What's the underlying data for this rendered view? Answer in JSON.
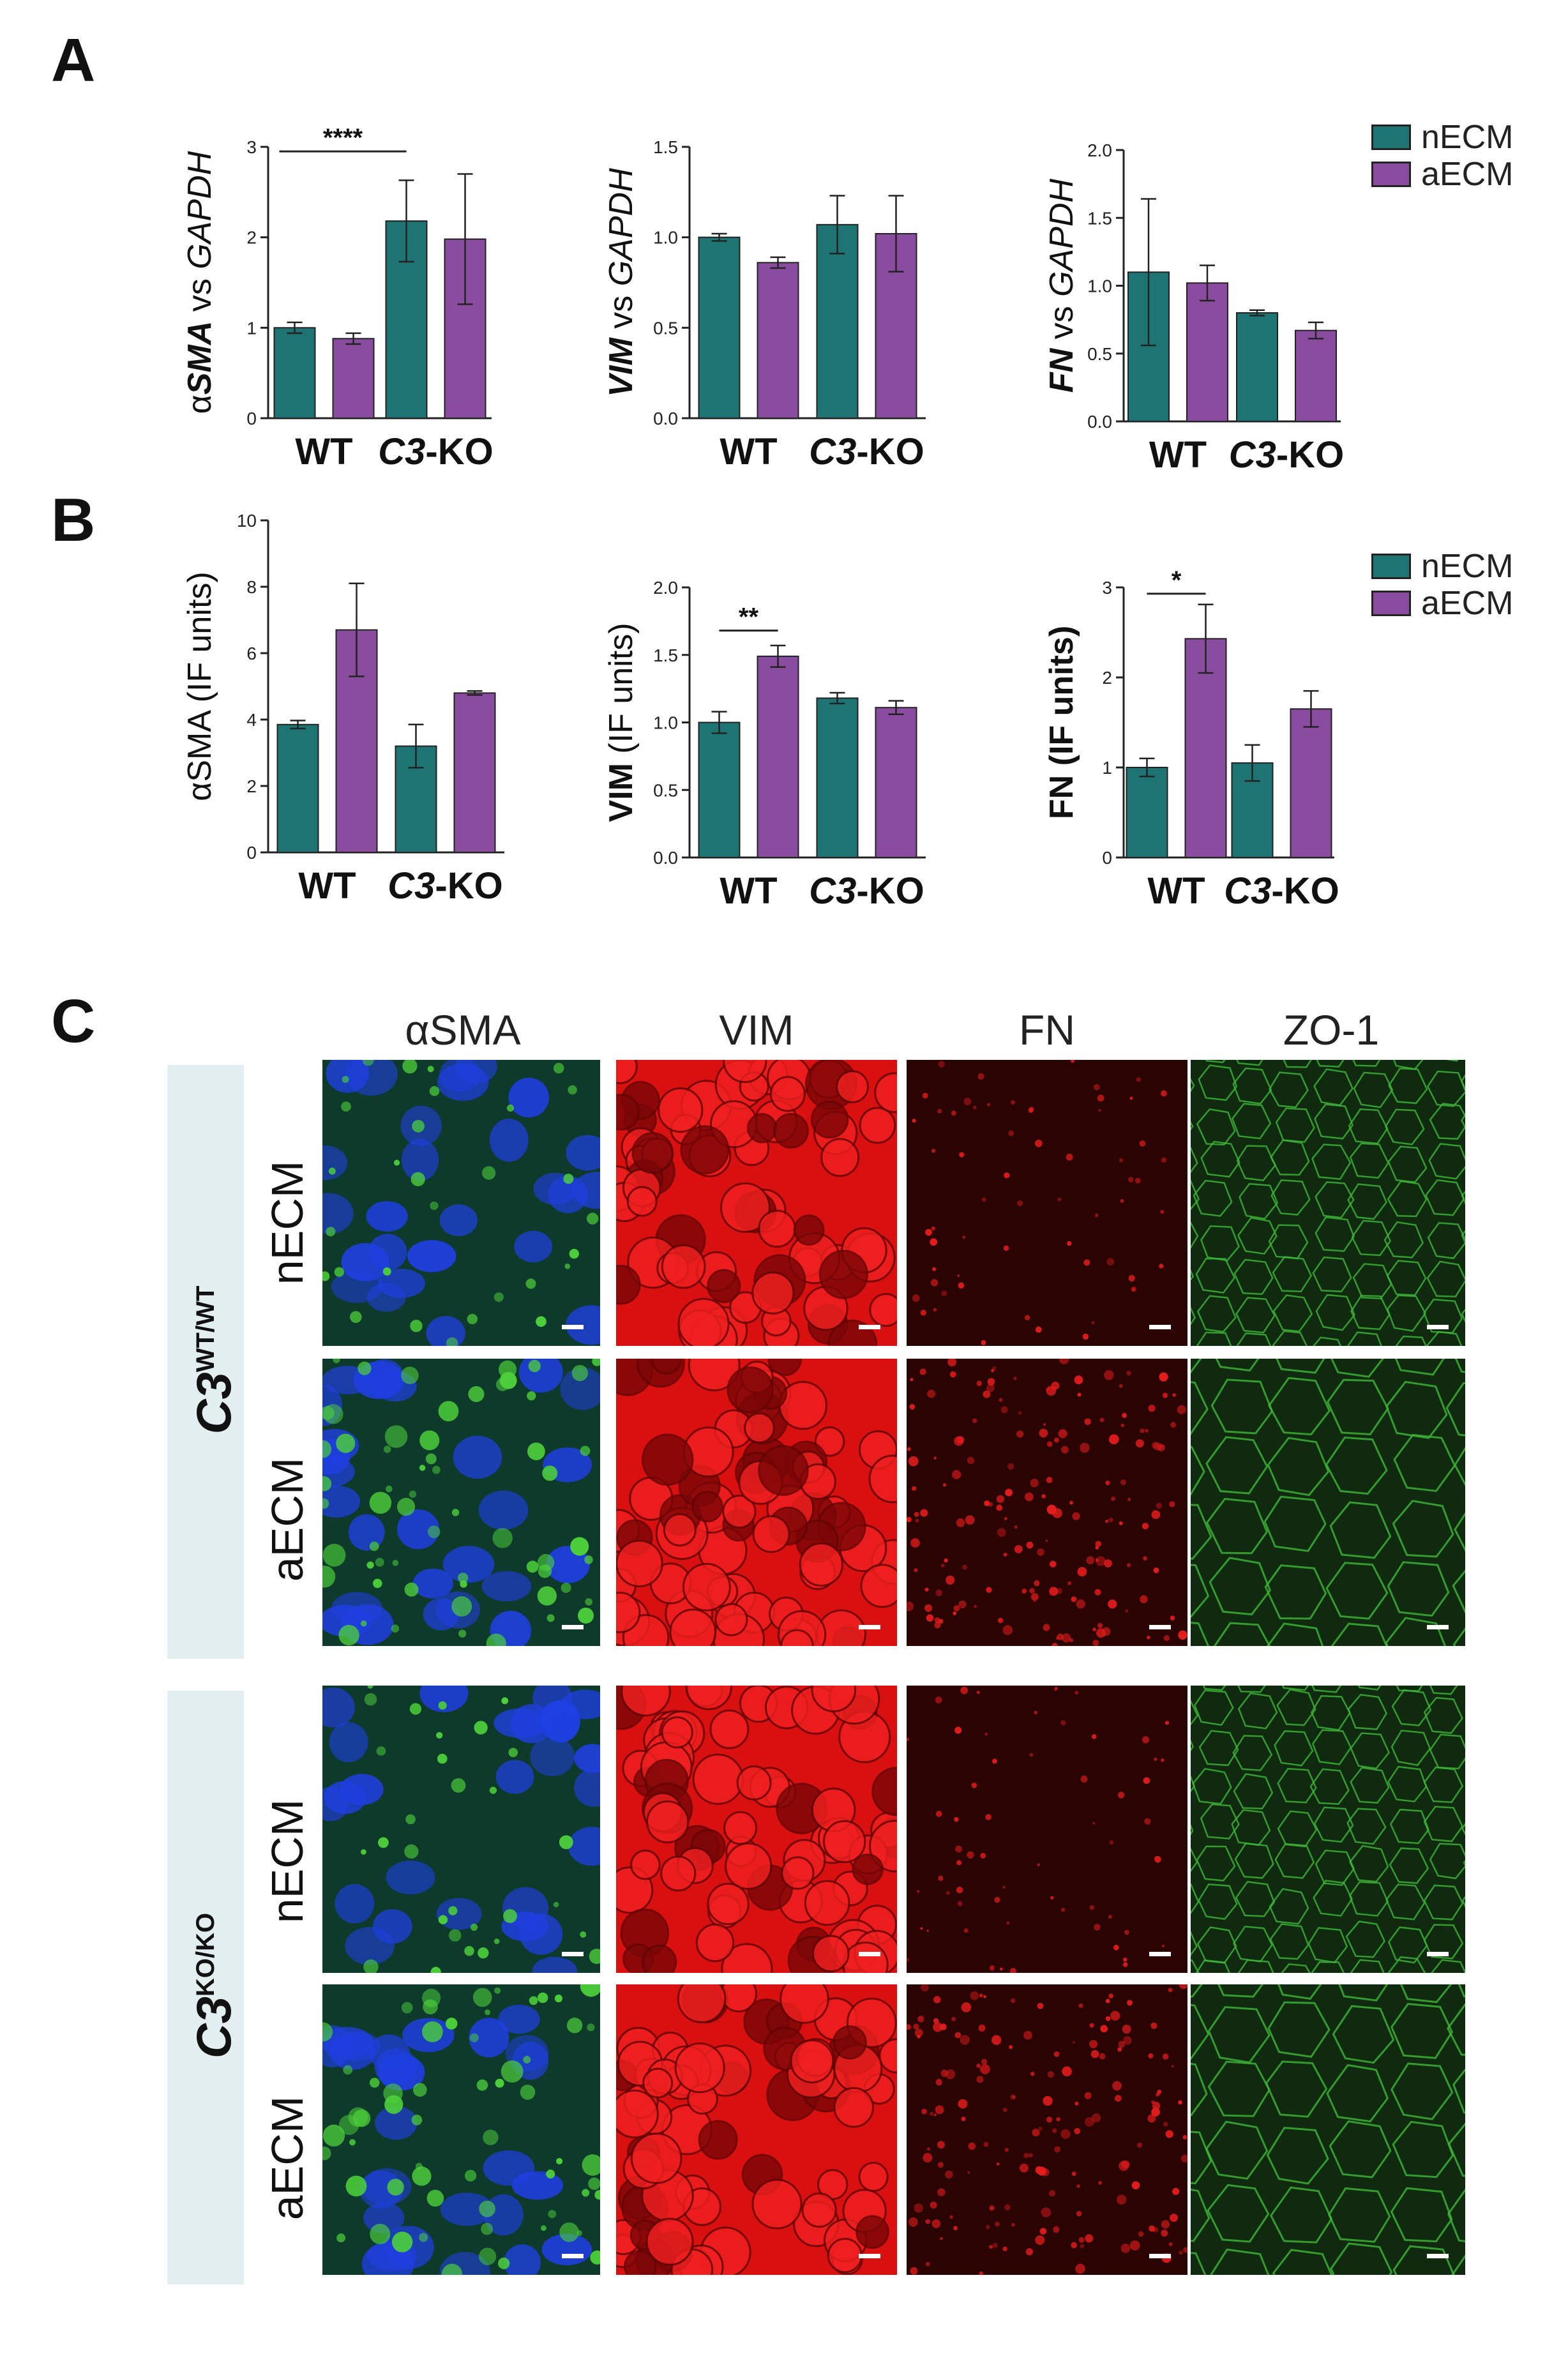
{
  "panels": {
    "a": "A",
    "b": "B",
    "c": "C"
  },
  "colors": {
    "nECM": "#1e7473",
    "aECM": "#8a4c9e",
    "blue": "#1b2fd6",
    "green": "#2fa02a",
    "red": "#e01212"
  },
  "legend_a": [
    {
      "label": "nECM",
      "color": "#1e7473"
    },
    {
      "label": "aECM",
      "color": "#8a4c9e"
    }
  ],
  "legend_b": [
    {
      "label": "nECM",
      "color": "#1e7473"
    },
    {
      "label": "aECM",
      "color": "#8a4c9e"
    }
  ],
  "chart_data": [
    {
      "id": "a1",
      "type": "bar",
      "panel": "A",
      "ylabel_parts": [
        {
          "t": "α",
          "b": false,
          "i": false
        },
        {
          "t": "SMA",
          "b": true,
          "i": true
        },
        {
          "t": " vs ",
          "b": false,
          "i": false
        },
        {
          "t": "GAPDH",
          "b": false,
          "i": true
        }
      ],
      "categories": [
        [
          {
            "t": "WT",
            "i": false
          }
        ],
        [
          {
            "t": "C3",
            "i": true
          },
          {
            "t": "-KO",
            "i": false
          }
        ]
      ],
      "ylim": [
        0,
        3
      ],
      "ticks": [
        "0",
        "1",
        "2",
        "3"
      ],
      "tick_values": [
        0,
        1,
        2,
        3
      ],
      "series": [
        {
          "name": "nECM",
          "values": [
            1.0,
            2.18
          ],
          "errors": [
            0.06,
            0.45
          ]
        },
        {
          "name": "aECM",
          "values": [
            0.88,
            1.98
          ],
          "errors": [
            0.06,
            0.72
          ]
        }
      ],
      "significance": [
        {
          "label": "****",
          "from": [
            0,
            0
          ],
          "to": [
            1,
            0
          ],
          "y": 2.95
        }
      ]
    },
    {
      "id": "a2",
      "type": "bar",
      "panel": "A",
      "ylabel_parts": [
        {
          "t": "VIM",
          "b": true,
          "i": true
        },
        {
          "t": " vs ",
          "b": false,
          "i": false
        },
        {
          "t": "GAPDH",
          "b": false,
          "i": true
        }
      ],
      "categories": [
        [
          {
            "t": "WT",
            "i": false
          }
        ],
        [
          {
            "t": "C3",
            "i": true
          },
          {
            "t": "-KO",
            "i": false
          }
        ]
      ],
      "ylim": [
        0,
        1.5
      ],
      "ticks": [
        "0.0",
        "0.5",
        "1.0",
        "1.5"
      ],
      "tick_values": [
        0,
        0.5,
        1.0,
        1.5
      ],
      "series": [
        {
          "name": "nECM",
          "values": [
            1.0,
            1.07
          ],
          "errors": [
            0.02,
            0.16
          ]
        },
        {
          "name": "aECM",
          "values": [
            0.86,
            1.02
          ],
          "errors": [
            0.03,
            0.21
          ]
        }
      ],
      "significance": []
    },
    {
      "id": "a3",
      "type": "bar",
      "panel": "A",
      "ylabel_parts": [
        {
          "t": "FN",
          "b": true,
          "i": true
        },
        {
          "t": " vs ",
          "b": false,
          "i": false
        },
        {
          "t": "GAPDH",
          "b": false,
          "i": true
        }
      ],
      "categories": [
        [
          {
            "t": "WT",
            "i": false
          }
        ],
        [
          {
            "t": "C3",
            "i": true
          },
          {
            "t": "-KO",
            "i": false
          }
        ]
      ],
      "ylim": [
        0,
        2.0
      ],
      "ticks": [
        "0.0",
        "0.5",
        "1.0",
        "1.5",
        "2.0"
      ],
      "tick_values": [
        0,
        0.5,
        1.0,
        1.5,
        2.0
      ],
      "series": [
        {
          "name": "nECM",
          "values": [
            1.1,
            0.8
          ],
          "errors": [
            0.54,
            0.02
          ]
        },
        {
          "name": "aECM",
          "values": [
            1.02,
            0.67
          ],
          "errors": [
            0.13,
            0.06
          ]
        }
      ],
      "significance": []
    },
    {
      "id": "b1",
      "type": "bar",
      "panel": "B",
      "ylabel_parts": [
        {
          "t": "αSMA",
          "b": false,
          "i": false
        },
        {
          "t": " (IF units)",
          "b": false,
          "i": false
        }
      ],
      "categories": [
        [
          {
            "t": "WT",
            "i": false
          }
        ],
        [
          {
            "t": "C3",
            "i": true
          },
          {
            "t": "-KO",
            "i": false
          }
        ]
      ],
      "ylim": [
        0,
        10
      ],
      "ticks": [
        "0",
        "2",
        "4",
        "6",
        "8",
        "10"
      ],
      "tick_values": [
        0,
        2,
        4,
        6,
        8,
        10
      ],
      "series": [
        {
          "name": "nECM",
          "values": [
            3.85,
            3.2
          ],
          "errors": [
            0.12,
            0.65
          ]
        },
        {
          "name": "aECM",
          "values": [
            6.7,
            4.8
          ],
          "errors": [
            1.4,
            0.06
          ]
        }
      ],
      "significance": []
    },
    {
      "id": "b2",
      "type": "bar",
      "panel": "B",
      "ylabel_parts": [
        {
          "t": "VIM",
          "b": true,
          "i": false
        },
        {
          "t": " (IF units)",
          "b": false,
          "i": false
        }
      ],
      "categories": [
        [
          {
            "t": "WT",
            "i": false
          }
        ],
        [
          {
            "t": "C3",
            "i": true
          },
          {
            "t": "-KO",
            "i": false
          }
        ]
      ],
      "ylim": [
        0,
        2.0
      ],
      "ticks": [
        "0.0",
        "0.5",
        "1.0",
        "1.5",
        "2.0"
      ],
      "tick_values": [
        0,
        0.5,
        1.0,
        1.5,
        2.0
      ],
      "series": [
        {
          "name": "nECM",
          "values": [
            1.0,
            1.18
          ],
          "errors": [
            0.08,
            0.04
          ]
        },
        {
          "name": "aECM",
          "values": [
            1.49,
            1.11
          ],
          "errors": [
            0.08,
            0.05
          ]
        }
      ],
      "significance": [
        {
          "label": "**",
          "from": [
            0,
            0
          ],
          "to": [
            0,
            1
          ],
          "y": 1.68
        }
      ]
    },
    {
      "id": "b3",
      "type": "bar",
      "panel": "B",
      "ylabel_parts": [
        {
          "t": "FN",
          "b": true,
          "i": false
        },
        {
          "t": " (IF units)",
          "b": true,
          "i": false
        }
      ],
      "categories": [
        [
          {
            "t": "WT",
            "i": false
          }
        ],
        [
          {
            "t": "C3",
            "i": true
          },
          {
            "t": "-KO",
            "i": false
          }
        ]
      ],
      "ylim": [
        0,
        3
      ],
      "ticks": [
        "0",
        "1",
        "2",
        "3"
      ],
      "tick_values": [
        0,
        1,
        2,
        3
      ],
      "series": [
        {
          "name": "nECM",
          "values": [
            1.0,
            1.05
          ],
          "errors": [
            0.1,
            0.2
          ]
        },
        {
          "name": "aECM",
          "values": [
            2.43,
            1.65
          ],
          "errors": [
            0.38,
            0.2
          ]
        }
      ],
      "significance": [
        {
          "label": "*",
          "from": [
            0,
            0
          ],
          "to": [
            0,
            1
          ],
          "y": 2.93
        }
      ]
    }
  ],
  "micrographs": {
    "columns": [
      "αSMA",
      "VIM",
      "FN",
      "ZO-1"
    ],
    "genotypes": [
      {
        "base": "C3",
        "sup": "WT/WT",
        "rows": [
          "nECM",
          "aECM"
        ]
      },
      {
        "base": "C3",
        "sup": "KO/KO",
        "rows": [
          "nECM",
          "aECM"
        ]
      }
    ]
  }
}
